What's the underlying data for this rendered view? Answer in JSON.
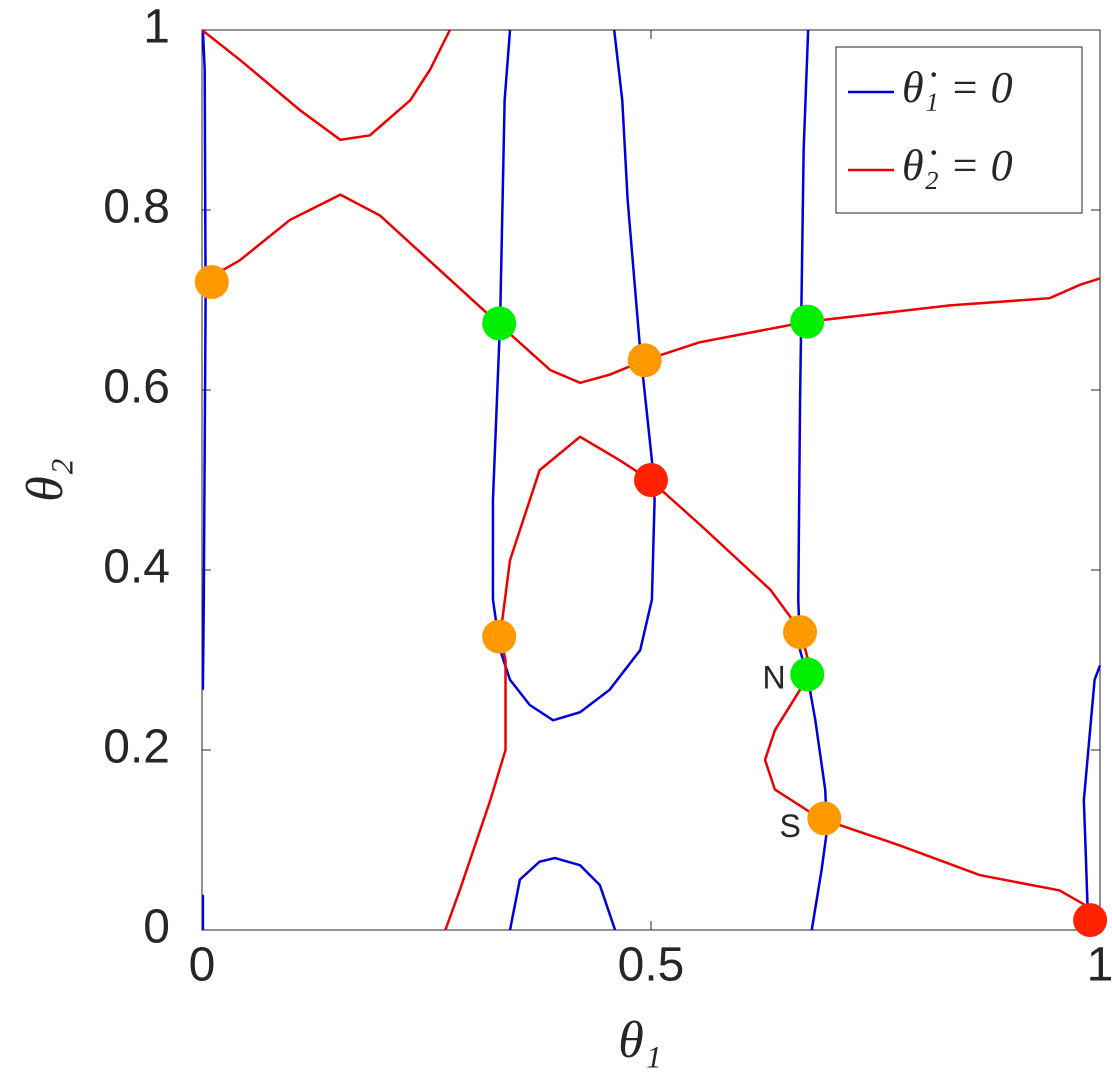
{
  "chart_data": {
    "type": "line",
    "xlabel": "θ₁",
    "ylabel": "θ₂",
    "xlim": [
      0,
      1
    ],
    "ylim": [
      0,
      1
    ],
    "xticks": [
      0,
      0.5,
      1
    ],
    "yticks": [
      0,
      0.2,
      0.4,
      0.6,
      0.8,
      1
    ],
    "legend": "upper right",
    "series": [
      {
        "name": "θ̇₁ = 0",
        "color": "#0000dd",
        "x": [
          0.001,
          0.003,
          0.004,
          0.002,
          0.001,
          null,
          0.001,
          0.001,
          null,
          0.343,
          0.337,
          0.332,
          0.324,
          0.324,
          0.332,
          0.343,
          0.365,
          0.391,
          0.421,
          0.454,
          0.488,
          0.501,
          0.504,
          0.501,
          0.488,
          0.474,
          0.468,
          0.459,
          null,
          0.343,
          0.354,
          0.376,
          0.393,
          0.421,
          0.443,
          0.46,
          null,
          0.675,
          0.67,
          0.666,
          0.664,
          0.666,
          0.675,
          0.683,
          0.694,
          0.696,
          0.69,
          0.679,
          null,
          1,
          0.994,
          0.987,
          0.982,
          0.984,
          0.987
        ],
        "y": [
          1,
          0.956,
          0.7,
          0.367,
          0.267,
          null,
          0.039,
          0,
          null,
          1,
          0.922,
          0.678,
          0.478,
          0.367,
          0.311,
          0.278,
          0.25,
          0.233,
          0.242,
          0.267,
          0.311,
          0.367,
          0.478,
          0.522,
          0.644,
          0.811,
          0.922,
          1,
          null,
          0,
          0.056,
          0.076,
          0.08,
          0.072,
          0.05,
          0,
          null,
          1,
          0.867,
          0.589,
          0.367,
          0.311,
          0.278,
          0.233,
          0.156,
          0.111,
          0.067,
          0,
          null,
          0.294,
          0.278,
          0.2,
          0.144,
          0.089,
          0
        ]
      },
      {
        "name": "θ̇₂ = 0",
        "color": "#ee0000",
        "x": [
          0,
          0.042,
          0.109,
          0.154,
          0.187,
          0.232,
          0.254,
          0.276,
          null,
          0,
          0.042,
          0.098,
          0.154,
          0.198,
          0.265,
          0.332,
          0.388,
          0.421,
          0.454,
          0.493,
          0.554,
          0.675,
          0.833,
          0.944,
          0.978,
          1,
          null,
          0.271,
          0.287,
          0.321,
          0.338,
          0.338,
          0.332,
          0.343,
          0.376,
          0.421,
          0.465,
          0.499,
          0.555,
          0.633,
          0.666,
          0.675,
          0.666,
          0.638,
          0.627,
          0.638,
          0.688,
          0.777,
          0.866,
          0.955,
          0.983,
          0.989
        ],
        "y": [
          1,
          0.967,
          0.911,
          0.878,
          0.883,
          0.922,
          0.956,
          1,
          null,
          0.72,
          0.744,
          0.789,
          0.817,
          0.794,
          0.733,
          0.672,
          0.622,
          0.608,
          0.617,
          0.633,
          0.653,
          0.676,
          0.694,
          0.702,
          0.717,
          0.724,
          null,
          0,
          0.044,
          0.144,
          0.2,
          0.3,
          0.326,
          0.411,
          0.511,
          0.548,
          0.522,
          0.5,
          0.45,
          0.378,
          0.333,
          0.3,
          0.267,
          0.222,
          0.189,
          0.156,
          0.124,
          0.094,
          0.061,
          0.044,
          0.028,
          0.011
        ]
      }
    ],
    "points": {
      "x": [
        0.011,
        0.331,
        0.493,
        0.674,
        0.5,
        0.331,
        0.666,
        0.674,
        0.693,
        0.989
      ],
      "y": [
        0.72,
        0.674,
        0.633,
        0.676,
        0.5,
        0.326,
        0.331,
        0.284,
        0.124,
        0.011
      ],
      "colors": [
        "#ff9900",
        "#00ee00",
        "#ff9900",
        "#00ee00",
        "#ff2200",
        "#ff9900",
        "#ff9900",
        "#00ee00",
        "#ff9900",
        "#ff2200"
      ]
    },
    "annotations": [
      {
        "text": "N",
        "x": 0.637,
        "y": 0.278
      },
      {
        "text": "S",
        "x": 0.655,
        "y": 0.113
      }
    ]
  }
}
